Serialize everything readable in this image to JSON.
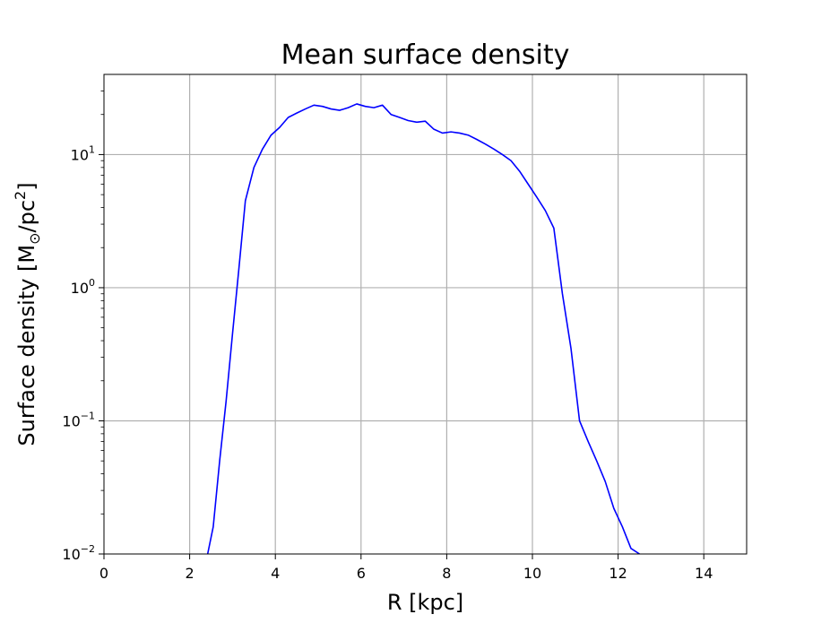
{
  "chart_data": {
    "type": "line",
    "title": "Mean surface density",
    "xlabel": "R [kpc]",
    "ylabel": {
      "before": "Surface density [M",
      "sub": "⊙",
      "mid": "/pc",
      "sup": "2",
      "after": "]"
    },
    "xlim": [
      0,
      15
    ],
    "ylim": [
      0.01,
      40
    ],
    "yscale": "log",
    "grid": true,
    "x_ticks": [
      {
        "value": 0,
        "label": "0"
      },
      {
        "value": 2,
        "label": "2"
      },
      {
        "value": 4,
        "label": "4"
      },
      {
        "value": 6,
        "label": "6"
      },
      {
        "value": 8,
        "label": "8"
      },
      {
        "value": 10,
        "label": "10"
      },
      {
        "value": 12,
        "label": "12"
      },
      {
        "value": 14,
        "label": "14"
      }
    ],
    "y_ticks": [
      {
        "value": 0.01,
        "base": "10",
        "exp": "−2"
      },
      {
        "value": 0.1,
        "base": "10",
        "exp": "−1"
      },
      {
        "value": 1,
        "base": "10",
        "exp": "0"
      },
      {
        "value": 10,
        "base": "10",
        "exp": "1"
      }
    ],
    "series": [
      {
        "color": "#0000ff",
        "x": [
          2.42,
          2.55,
          2.7,
          2.85,
          3.0,
          3.15,
          3.3,
          3.5,
          3.7,
          3.9,
          4.1,
          4.3,
          4.5,
          4.7,
          4.9,
          5.1,
          5.3,
          5.5,
          5.7,
          5.9,
          6.1,
          6.3,
          6.5,
          6.7,
          6.9,
          7.1,
          7.3,
          7.5,
          7.7,
          7.9,
          8.1,
          8.3,
          8.5,
          8.7,
          8.9,
          9.1,
          9.3,
          9.5,
          9.7,
          9.9,
          10.1,
          10.3,
          10.5,
          10.7,
          10.9,
          11.1,
          11.3,
          11.5,
          11.7,
          11.9,
          12.1,
          12.3,
          12.5
        ],
        "y": [
          0.01,
          0.016,
          0.05,
          0.14,
          0.45,
          1.4,
          4.5,
          8.0,
          11.0,
          14.0,
          16.0,
          19.0,
          20.5,
          22.0,
          23.5,
          23.0,
          22.0,
          21.5,
          22.5,
          24.0,
          23.0,
          22.5,
          23.5,
          20.0,
          19.0,
          18.0,
          17.5,
          17.8,
          15.5,
          14.5,
          14.8,
          14.5,
          14.0,
          13.0,
          12.0,
          11.0,
          10.0,
          9.0,
          7.5,
          6.0,
          4.8,
          3.8,
          2.8,
          0.9,
          0.35,
          0.1,
          0.07,
          0.05,
          0.035,
          0.022,
          0.016,
          0.011,
          0.01
        ]
      }
    ]
  }
}
